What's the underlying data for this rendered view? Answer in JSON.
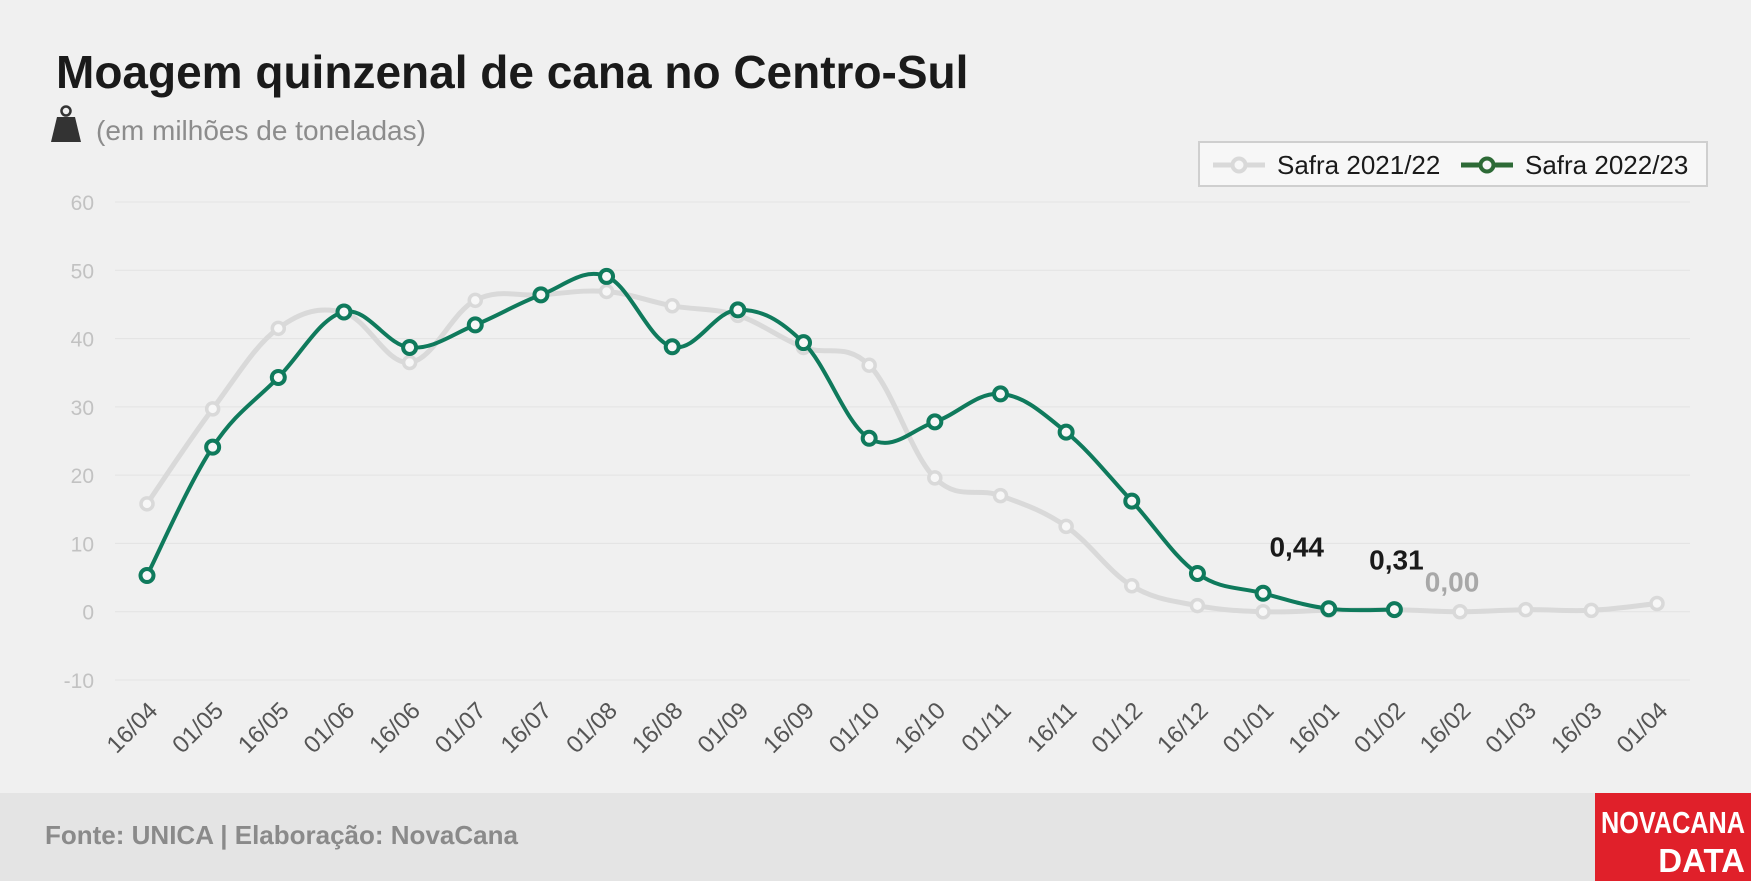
{
  "header": {
    "title": "Moagem quinzenal de cana no Centro-Sul",
    "subtitle": "(em milhões de toneladas)",
    "icon": "weight-icon"
  },
  "footer": {
    "source": "Fonte: UNICA | Elaboração: NovaCana",
    "logo_line1": "NOVACANA",
    "logo_line2": "DATA"
  },
  "colors": {
    "background": "#f0f0f0",
    "footer_band": "#e4e4e4",
    "series_old": "#d9d9d9",
    "series_new": "#0f7a5c",
    "logo": "#e0202a"
  },
  "chart_data": {
    "type": "line",
    "title": "Moagem quinzenal de cana no Centro-Sul",
    "subtitle": "(em milhões de toneladas)",
    "xlabel": "",
    "ylabel": "",
    "categories": [
      "16/04",
      "01/05",
      "16/05",
      "01/06",
      "16/06",
      "01/07",
      "16/07",
      "01/08",
      "16/08",
      "01/09",
      "16/09",
      "01/10",
      "16/10",
      "01/11",
      "16/11",
      "01/12",
      "16/12",
      "01/01",
      "16/01",
      "01/02",
      "16/02",
      "01/03",
      "16/03",
      "01/04"
    ],
    "yticks": [
      "60",
      "50",
      "40",
      "30",
      "20",
      "10",
      "0",
      "-10"
    ],
    "ylim": [
      -10,
      60
    ],
    "grid": true,
    "legend_position": "top-right",
    "series": [
      {
        "name": "Safra 2021/22",
        "color": "#d9d9d9",
        "values": [
          15.8,
          29.7,
          41.5,
          43.8,
          36.5,
          45.6,
          46.4,
          46.9,
          44.8,
          43.4,
          38.7,
          36.1,
          19.6,
          17.0,
          12.5,
          3.8,
          0.9,
          0.0,
          0.2,
          0.3,
          0.0,
          0.3,
          0.2,
          1.2
        ]
      },
      {
        "name": "Safra 2022/23",
        "color": "#0f7a5c",
        "values": [
          5.3,
          24.1,
          34.3,
          43.9,
          38.7,
          42.0,
          46.4,
          49.1,
          38.8,
          44.2,
          39.4,
          25.4,
          27.8,
          31.9,
          26.3,
          16.2,
          5.6,
          2.7,
          0.44,
          0.31,
          null,
          null,
          null,
          null
        ]
      }
    ],
    "annotations": [
      {
        "text": "0,44",
        "category": "16/01",
        "value": 0.44,
        "style": "dark"
      },
      {
        "text": "0,31",
        "category": "01/02",
        "value": 0.31,
        "style": "dark"
      },
      {
        "text": "0,00",
        "category": "16/02",
        "value": 0.0,
        "style": "grey"
      }
    ]
  }
}
